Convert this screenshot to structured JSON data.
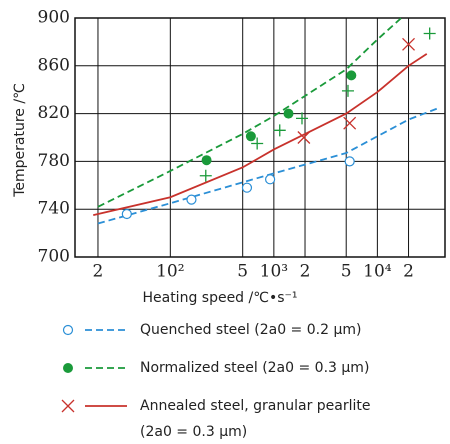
{
  "chart_data": {
    "type": "line",
    "x_label": "Heating speed /℃•s⁻¹",
    "y_label": "Temperature /℃",
    "xscale": "log",
    "xlim": [
      12,
      45000
    ],
    "ylim": [
      700,
      900
    ],
    "xticks": [
      {
        "value": 20,
        "label": "2"
      },
      {
        "value": 100,
        "label": "10²"
      },
      {
        "value": 500,
        "label": "5"
      },
      {
        "value": 1000,
        "label": "10³"
      },
      {
        "value": 2000,
        "label": "2"
      },
      {
        "value": 5000,
        "label": "5"
      },
      {
        "value": 10000,
        "label": "10⁴"
      },
      {
        "value": 20000,
        "label": "2"
      }
    ],
    "yticks": [
      700,
      740,
      780,
      820,
      860,
      900
    ],
    "grid": true,
    "series": [
      {
        "name": "Quenched steel (2a0 = 0.2 μm)",
        "color": "#2b8fd6",
        "style": "dashed",
        "marker": "open-circle",
        "curve_x": [
          20,
          100,
          1000,
          5000,
          20000,
          40000
        ],
        "curve_values": [
          728,
          745,
          770,
          787,
          815,
          825
        ],
        "x": [
          38,
          160,
          550,
          920,
          5400
        ],
        "values": [
          736,
          748,
          758,
          765,
          780
        ]
      },
      {
        "name": "Normalized steel (2a0 = 0.3 μm)",
        "color": "#1a9a3a",
        "style": "dashed",
        "marker": "filled-circle",
        "curve_x": [
          20,
          100,
          500,
          1000,
          5000,
          10000,
          17000
        ],
        "curve_values": [
          742,
          772,
          803,
          818,
          857,
          882,
          900
        ],
        "x": [
          224,
          600,
          1385,
          5600
        ],
        "values": [
          781,
          801,
          820,
          852
        ]
      },
      {
        "color": "#1a9a3a",
        "marker": "plus",
        "x": [
          220,
          690,
          1140,
          1870,
          5200,
          32000
        ],
        "values": [
          768,
          795,
          806,
          816,
          839,
          887
        ]
      },
      {
        "name": "Annealed steel, granular pearlite",
        "name_line2": "(2a0 = 0.3 μm)",
        "color": "#c8322c",
        "style": "solid",
        "marker": "cross",
        "curve_x": [
          18,
          100,
          500,
          1000,
          5000,
          10000,
          20000,
          30000
        ],
        "curve_values": [
          735,
          750,
          775,
          790,
          820,
          838,
          860,
          870
        ],
        "x": [
          1950,
          5400,
          20000
        ],
        "values": [
          800,
          812,
          878
        ]
      }
    ]
  }
}
